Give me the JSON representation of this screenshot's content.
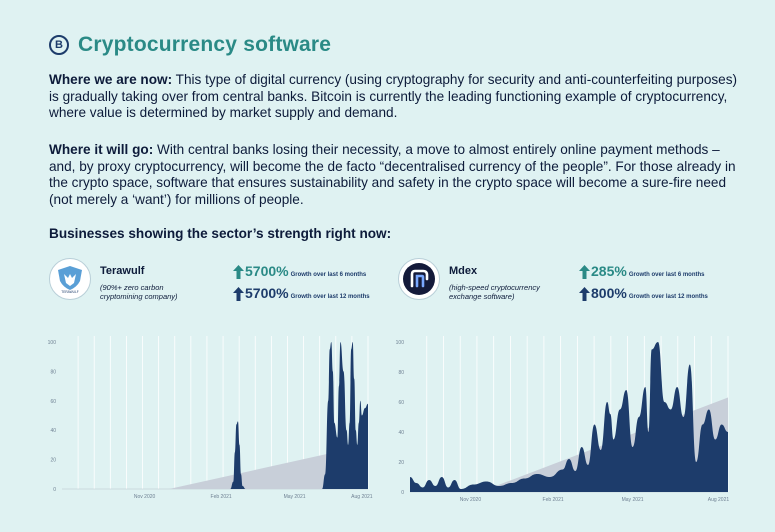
{
  "title": "Cryptocurrency software",
  "title_icon": "bitcoin-icon",
  "para1": {
    "lead": "Where we are now:",
    "text": " This type of digital currency (using cryptography for security and anti-counterfeiting purposes) is gradually taking over from central banks. Bitcoin is currently the leading functioning example of cryptocurrency, where value is determined by market supply and demand."
  },
  "para2": {
    "lead": "Where it will go:",
    "text": " With central banks losing their necessity, a move to almost entirely online payment methods – and, by proxy cryptocurrency, will become the de facto “decentralised currency of the people”. For those already in the crypto space, software that ensures sustainability and safety in the crypto space will become a sure-fire need (not merely a ‘want’) for millions of people."
  },
  "businesses_heading": "Businesses showing the sector’s strength right now:",
  "companies": [
    {
      "name": "Terawulf",
      "desc_line1": "(90%+ zero carbon",
      "desc_line2": "cryptomining company)",
      "logo_text": "TERAWULF",
      "stats": [
        {
          "value": "5700%",
          "label": "Growth over last 6 months",
          "color": "#2a8a86"
        },
        {
          "value": "5700%",
          "label": "Growth over last 12 months",
          "color": "#1d3c6b"
        }
      ]
    },
    {
      "name": "Mdex",
      "desc_line1": "(high-speed cryptocurrency",
      "desc_line2": "exchange software)",
      "stats": [
        {
          "value": "285%",
          "label": "Growth over last 6 months",
          "color": "#2a8a86"
        },
        {
          "value": "800%",
          "label": "Growth over last 12 months",
          "color": "#1d3c6b"
        }
      ]
    }
  ],
  "colors": {
    "accent": "#2a8a86",
    "navy": "#1d3c6b",
    "background": "#dff2f2",
    "trend": "#c8cfd9"
  },
  "chart_data": [
    {
      "type": "area",
      "title": "",
      "ylim": [
        0,
        100
      ],
      "yticks": [
        "0",
        "20",
        "40",
        "60",
        "80",
        "100"
      ],
      "xticks": [
        {
          "label": "Nov 2020",
          "t": 0.27
        },
        {
          "label": "Feb 2021",
          "t": 0.52
        },
        {
          "label": "May 2021",
          "t": 0.76
        },
        {
          "label": "Aug 2021",
          "t": 0.98
        }
      ],
      "grid": true,
      "trend": {
        "start": [
          0.35,
          0
        ],
        "end": [
          1.0,
          30
        ]
      },
      "series": [
        {
          "x": [
            0,
            0.55,
            0.56,
            0.565,
            0.57,
            0.575,
            0.58,
            0.585,
            0.59,
            0.6,
            0.85
          ],
          "y": [
            0,
            0,
            5,
            25,
            44,
            46,
            30,
            10,
            2,
            0,
            0
          ]
        },
        {
          "x": [
            0.85,
            0.86,
            0.87,
            0.875,
            0.88,
            0.885,
            0.89,
            0.9,
            0.905,
            0.91,
            0.92,
            0.93,
            0.935,
            0.94,
            0.945,
            0.95,
            0.955,
            0.96,
            0.965,
            0.97,
            0.975,
            0.98,
            0.99,
            1.0
          ],
          "y": [
            0,
            10,
            60,
            95,
            100,
            80,
            45,
            35,
            70,
            100,
            80,
            40,
            30,
            45,
            95,
            100,
            75,
            40,
            30,
            45,
            60,
            50,
            55,
            58
          ]
        }
      ]
    },
    {
      "type": "area",
      "title": "",
      "ylim": [
        0,
        100
      ],
      "yticks": [
        "0",
        "20",
        "40",
        "60",
        "80",
        "100"
      ],
      "xticks": [
        {
          "label": "Nov 2020",
          "t": 0.19
        },
        {
          "label": "Feb 2021",
          "t": 0.45
        },
        {
          "label": "May 2021",
          "t": 0.7
        },
        {
          "label": "Aug 2021",
          "t": 0.97
        }
      ],
      "grid": true,
      "trend": {
        "start": [
          0.22,
          0
        ],
        "end": [
          1.0,
          63
        ]
      },
      "series": [
        {
          "x": [
            0,
            0.02,
            0.04,
            0.06,
            0.08,
            0.1,
            0.12,
            0.14,
            0.16,
            0.2,
            0.24,
            0.28,
            0.32,
            0.36,
            0.4,
            0.44,
            0.48,
            0.5,
            0.52,
            0.54,
            0.56,
            0.58,
            0.6,
            0.62,
            0.63,
            0.64,
            0.66,
            0.68,
            0.7,
            0.72,
            0.74,
            0.75,
            0.76,
            0.78,
            0.8,
            0.82,
            0.84,
            0.86,
            0.88,
            0.9,
            0.92,
            0.94,
            0.96,
            0.98,
            1.0
          ],
          "y": [
            10,
            6,
            3,
            8,
            4,
            10,
            3,
            8,
            2,
            5,
            7,
            4,
            6,
            9,
            12,
            10,
            15,
            22,
            14,
            30,
            18,
            45,
            28,
            60,
            52,
            35,
            55,
            68,
            30,
            50,
            70,
            40,
            95,
            100,
            60,
            55,
            70,
            50,
            85,
            20,
            45,
            55,
            35,
            45,
            40
          ]
        }
      ]
    }
  ]
}
